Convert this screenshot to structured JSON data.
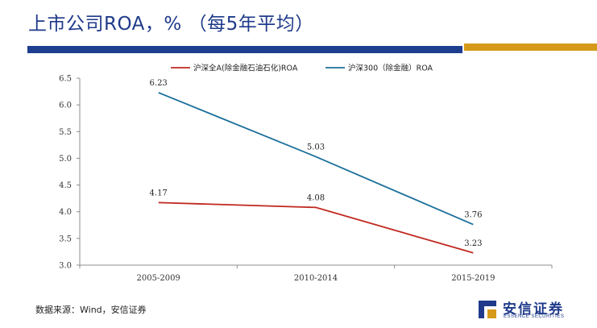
{
  "header": {
    "title": "上市公司ROA，% （每5年平均）"
  },
  "footer": {
    "source": "数据来源：Wind，安信证券"
  },
  "logo": {
    "name_cn": "安信证券",
    "name_en": "ESSENCE SECURITIES",
    "icon": "essence-securities-logo-icon"
  },
  "colors": {
    "title": "#1f3a8a",
    "band_blue": "#1e3f8f",
    "band_gold": "#d59a1a"
  },
  "chart_data": {
    "type": "line",
    "categories": [
      "2005-2009",
      "2010-2014",
      "2015-2019"
    ],
    "series": [
      {
        "name": "沪深全A(除金融石油石化)ROA",
        "values": [
          4.17,
          4.08,
          3.23
        ],
        "labels": [
          "4.17",
          "4.08",
          "3.23"
        ],
        "color": "#c0281f"
      },
      {
        "name": "沪深300（除金融）ROA",
        "values": [
          6.23,
          5.03,
          3.76
        ],
        "labels": [
          "6.23",
          "5.03",
          "3.76"
        ],
        "color": "#1b6f9a"
      }
    ],
    "ylim": [
      3.0,
      6.5
    ],
    "yticks": [
      "3.0",
      "3.5",
      "4.0",
      "4.5",
      "5.0",
      "5.5",
      "6.0",
      "6.5"
    ],
    "legend": "top",
    "grid": false
  }
}
